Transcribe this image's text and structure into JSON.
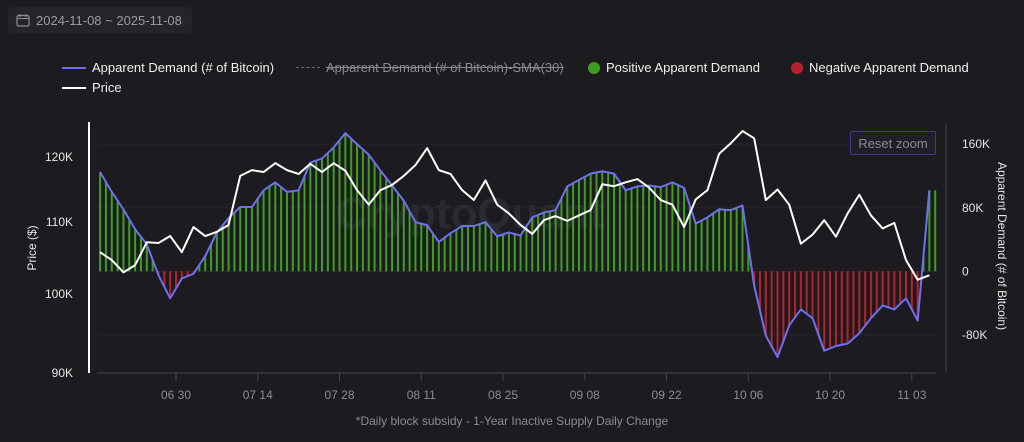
{
  "date_range": {
    "label": "2024-11-08 ~ 2025-11-08",
    "icon": "calendar-icon"
  },
  "legend": [
    {
      "label": "Apparent Demand (# of Bitcoin)",
      "color": "#6f6ff0",
      "style": "line"
    },
    {
      "label": "Apparent Demand (# of Bitcoin)-SMA(30)",
      "color": "#6a6a70",
      "style": "dashed",
      "hidden": true
    },
    {
      "label": "Positive Apparent Demand",
      "color": "#3f9e22",
      "style": "dot"
    },
    {
      "label": "Negative Apparent Demand",
      "color": "#b4232b",
      "style": "dot"
    },
    {
      "label": "Price",
      "color": "#ffffff",
      "style": "line"
    }
  ],
  "reset_zoom_label": "Reset zoom",
  "footnote": "*Daily block subsidy - 1-Year Inactive Supply Daily Change",
  "watermark": "CryptoQuant",
  "chart_data": {
    "type": "line",
    "xlabel": "",
    "x_ticks": [
      "06 30",
      "07 14",
      "07 28",
      "08 11",
      "08 25",
      "09 08",
      "09 22",
      "10 06",
      "10 20",
      "11 03"
    ],
    "x_tick_dates": [
      "06-30",
      "07-14",
      "07-28",
      "08-11",
      "08-25",
      "09-08",
      "09-22",
      "10-06",
      "10-20",
      "11-03"
    ],
    "y_left": {
      "label": "Price ($)",
      "scale": "log",
      "range": [
        90000,
        125700
      ],
      "ticks": [
        {
          "value": 120000,
          "label": "120K"
        },
        {
          "value": 110000,
          "label": "110K"
        },
        {
          "value": 100000,
          "label": "100K"
        },
        {
          "value": 90000,
          "label": "90K"
        }
      ]
    },
    "y_right": {
      "label": "Apparent Demand (# of Bitcoin)",
      "scale": "linear",
      "range": [
        -128000,
        188000
      ],
      "ticks": [
        {
          "value": 160000,
          "label": "160K"
        },
        {
          "value": 80000,
          "label": "80K"
        },
        {
          "value": 0,
          "label": "0"
        },
        {
          "value": -80000,
          "label": "-80K"
        }
      ]
    },
    "grid": true,
    "legend_position": "top-left",
    "x": [
      "06-17",
      "06-19",
      "06-21",
      "06-23",
      "06-25",
      "06-27",
      "06-29",
      "07-01",
      "07-03",
      "07-05",
      "07-07",
      "07-09",
      "07-11",
      "07-13",
      "07-15",
      "07-17",
      "07-19",
      "07-21",
      "07-23",
      "07-25",
      "07-27",
      "07-29",
      "07-31",
      "08-02",
      "08-04",
      "08-06",
      "08-08",
      "08-10",
      "08-12",
      "08-14",
      "08-16",
      "08-18",
      "08-20",
      "08-22",
      "08-24",
      "08-26",
      "08-28",
      "08-30",
      "09-01",
      "09-03",
      "09-05",
      "09-07",
      "09-09",
      "09-11",
      "09-13",
      "09-15",
      "09-17",
      "09-19",
      "09-21",
      "09-23",
      "09-25",
      "09-27",
      "09-29",
      "10-01",
      "10-03",
      "10-05",
      "10-07",
      "10-09",
      "10-11",
      "10-13",
      "10-15",
      "10-17",
      "10-19",
      "10-21",
      "10-23",
      "10-25",
      "10-27",
      "10-29",
      "10-31",
      "11-02",
      "11-04",
      "11-06"
    ],
    "series": [
      {
        "name": "Apparent Demand (# of Bitcoin)",
        "axis": "right",
        "color": "#6f6ff0",
        "values": [
          125000,
          100000,
          78000,
          53000,
          34000,
          -5000,
          -34000,
          -9000,
          -3000,
          19000,
          49000,
          67000,
          81000,
          81000,
          102000,
          112000,
          100000,
          102000,
          137000,
          142000,
          156000,
          174000,
          160000,
          147000,
          127000,
          108000,
          89000,
          62000,
          58000,
          37000,
          48000,
          57000,
          57000,
          62000,
          44000,
          49000,
          45000,
          68000,
          74000,
          77000,
          107000,
          115000,
          123000,
          126000,
          123000,
          102000,
          107000,
          108000,
          106000,
          112000,
          105000,
          60000,
          68000,
          78000,
          77000,
          83000,
          -18000,
          -81000,
          -108000,
          -68000,
          -48000,
          -59000,
          -100000,
          -94000,
          -91000,
          -78000,
          -59000,
          -43000,
          -48000,
          -34000,
          -62000,
          102000
        ]
      },
      {
        "name": "Price",
        "axis": "left",
        "color": "#ffffff",
        "values": [
          105700,
          104600,
          102900,
          103900,
          107100,
          107000,
          108000,
          105700,
          109300,
          108000,
          108600,
          109600,
          117000,
          117900,
          117600,
          119000,
          117900,
          117300,
          118900,
          117600,
          119000,
          117800,
          114800,
          112600,
          114800,
          115600,
          117000,
          118700,
          121400,
          117900,
          117300,
          114800,
          113300,
          116300,
          112600,
          111300,
          109600,
          108300,
          110300,
          110900,
          110200,
          111000,
          111800,
          115700,
          115400,
          116000,
          116500,
          115200,
          113300,
          112600,
          109300,
          113400,
          114800,
          120500,
          122200,
          124200,
          123000,
          113300,
          114900,
          112600,
          106900,
          108200,
          110300,
          107900,
          111300,
          114100,
          111000,
          109100,
          109900,
          104600,
          101900,
          102500
        ]
      }
    ]
  }
}
